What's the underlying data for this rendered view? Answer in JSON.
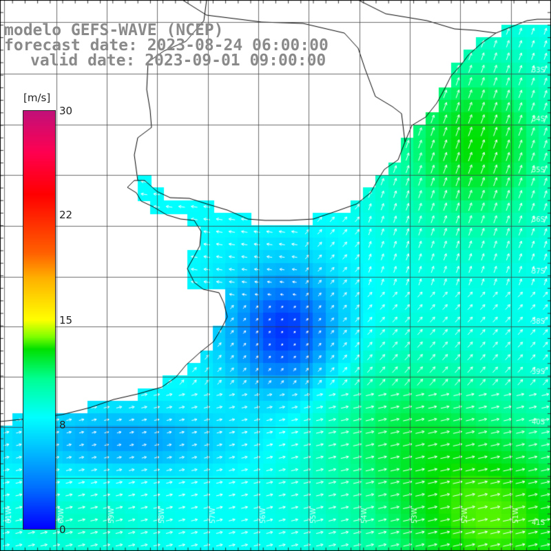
{
  "title": {
    "line1": "modelo GEFS-WAVE (NCEP)",
    "line2": "forecast date: 2023-08-24 06:00:00",
    "line3": "valid date: 2023-09-01 09:00:00"
  },
  "colorbar": {
    "unit": "[m/s]",
    "min": 0,
    "max": 30,
    "ticks": [
      "30",
      "22",
      "15",
      "8",
      "0"
    ],
    "colors": [
      "#0000ff",
      "#0070ff",
      "#00c8ff",
      "#00ffff",
      "#00ff90",
      "#00e000",
      "#80ff00",
      "#ffff00",
      "#ffb000",
      "#ff6000",
      "#ff0000",
      "#c0107a"
    ]
  },
  "map": {
    "latitude_labels": [
      "33S",
      "34S",
      "35S",
      "36S",
      "37S",
      "38S",
      "39S",
      "40S",
      "41S"
    ],
    "longitude_labels": [
      "61W",
      "60W",
      "59W",
      "58W",
      "57W",
      "56W",
      "55W",
      "54W",
      "53W",
      "52W",
      "51W"
    ],
    "land_color": "#ffffff",
    "coast_color": "#000000",
    "grid_color": "#000000",
    "arrow_color": "#ffffff"
  }
}
